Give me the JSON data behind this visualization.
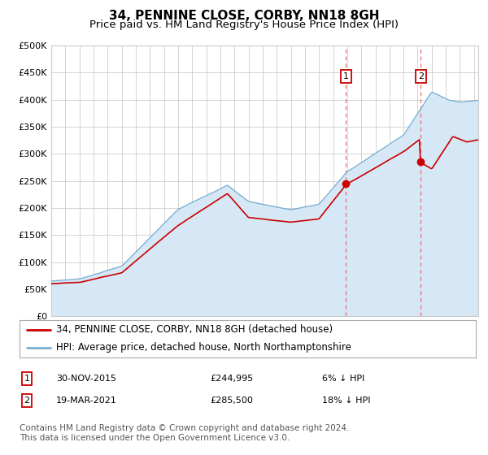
{
  "title": "34, PENNINE CLOSE, CORBY, NN18 8GH",
  "subtitle": "Price paid vs. HM Land Registry's House Price Index (HPI)",
  "ylabel_ticks": [
    "£0",
    "£50K",
    "£100K",
    "£150K",
    "£200K",
    "£250K",
    "£300K",
    "£350K",
    "£400K",
    "£450K",
    "£500K"
  ],
  "ylim": [
    0,
    500000
  ],
  "xlim_start": 1995.0,
  "xlim_end": 2025.3,
  "annotation1": {
    "label": "1",
    "date_num": 2015.92,
    "price": 244995
  },
  "annotation2": {
    "label": "2",
    "date_num": 2021.22,
    "price": 285500
  },
  "legend_line1": "34, PENNINE CLOSE, CORBY, NN18 8GH (detached house)",
  "legend_line2": "HPI: Average price, detached house, North Northamptonshire",
  "ann1_date": "30-NOV-2015",
  "ann1_price": "£244,995",
  "ann1_pct": "6% ↓ HPI",
  "ann2_date": "19-MAR-2021",
  "ann2_price": "£285,500",
  "ann2_pct": "18% ↓ HPI",
  "footer": "Contains HM Land Registry data © Crown copyright and database right 2024.\nThis data is licensed under the Open Government Licence v3.0.",
  "sale_color": "#cc0000",
  "hpi_color": "#7ab0d4",
  "hpi_fill_color": "#d6e8f5",
  "dashed_line_color": "#e87070",
  "background_color": "#ffffff",
  "grid_color": "#cccccc",
  "title_fontsize": 11,
  "subtitle_fontsize": 9.5,
  "tick_fontsize": 8,
  "legend_fontsize": 8.5,
  "footer_fontsize": 7.5,
  "ann_box_color": "#cc0000"
}
